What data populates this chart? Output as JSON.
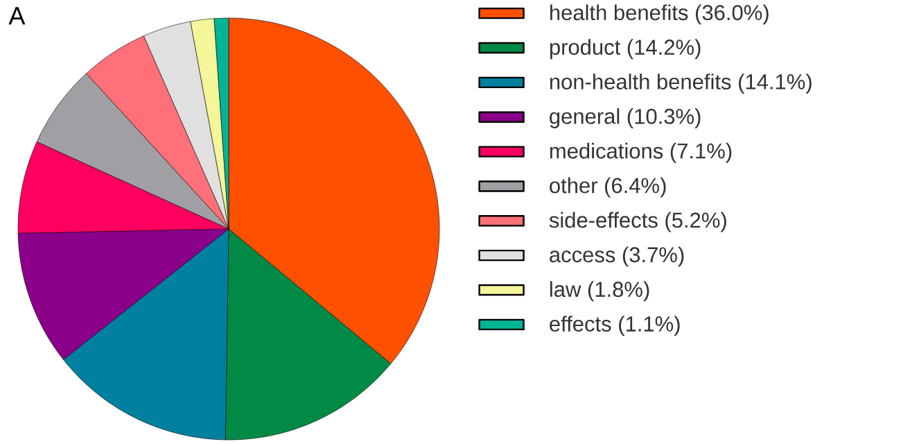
{
  "chart_data": {
    "type": "pie",
    "title": "A",
    "categories": [
      "health benefits (36.0%)",
      "product (14.2%)",
      "non-health benefits (14.1%)",
      "general (10.3%)",
      "medications (7.1%)",
      "other (6.4%)",
      "side-effects (5.2%)",
      "access (3.7%)",
      "law (1.8%)",
      "effects (1.1%)"
    ],
    "values": [
      36.0,
      14.2,
      14.1,
      10.3,
      7.1,
      6.4,
      5.2,
      3.7,
      1.8,
      1.1
    ],
    "colors": [
      "#ff5000",
      "#008a45",
      "#00809f",
      "#8b008b",
      "#ff0060",
      "#a0a0a4",
      "#ff7078",
      "#e0e0e0",
      "#f5f59a",
      "#00b496"
    ],
    "legend": "right"
  }
}
